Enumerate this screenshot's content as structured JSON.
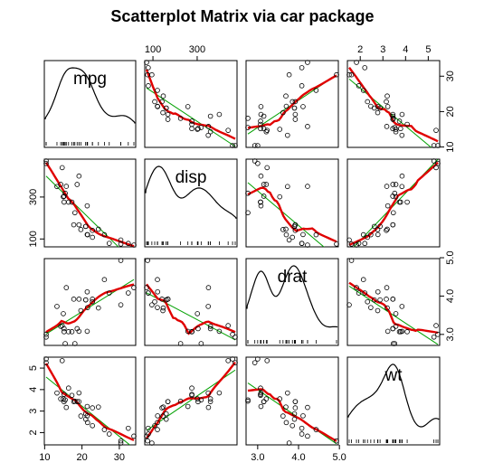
{
  "chart_data": {
    "type": "scatter",
    "title": "Scatterplot Matrix via car package",
    "variables": [
      "mpg",
      "disp",
      "drat",
      "wt"
    ],
    "axis_ticks": {
      "mpg": [
        "10",
        "20",
        "30"
      ],
      "disp": [
        "100",
        "300"
      ],
      "drat": [
        "3.0",
        "4.0",
        "5.0"
      ],
      "wt": [
        "2",
        "3",
        "4",
        "5"
      ]
    },
    "ranges": {
      "mpg": [
        10.4,
        33.9
      ],
      "disp": [
        71.1,
        472
      ],
      "drat": [
        2.76,
        4.93
      ],
      "wt": [
        1.513,
        5.424
      ]
    },
    "observations": {
      "mpg": [
        21.0,
        21.0,
        22.8,
        21.4,
        18.7,
        18.1,
        14.3,
        24.4,
        22.8,
        19.2,
        17.8,
        16.4,
        17.3,
        15.2,
        10.4,
        10.4,
        14.7,
        32.4,
        30.4,
        33.9,
        21.5,
        15.5,
        15.2,
        13.3,
        19.2,
        27.3,
        26.0,
        30.4,
        15.8,
        19.7,
        15.0,
        21.4
      ],
      "disp": [
        160,
        160,
        108,
        258,
        360,
        225,
        360,
        146.7,
        140.8,
        167.6,
        167.6,
        275.8,
        275.8,
        275.8,
        472,
        460,
        440,
        78.7,
        75.7,
        71.1,
        120.1,
        318,
        304,
        350,
        400,
        79,
        120.3,
        95.1,
        351,
        145,
        301,
        121
      ],
      "drat": [
        3.9,
        3.9,
        3.85,
        3.08,
        3.15,
        2.76,
        3.21,
        3.69,
        3.92,
        3.92,
        3.92,
        3.07,
        3.07,
        3.07,
        2.93,
        3.0,
        3.23,
        4.08,
        4.93,
        4.22,
        3.7,
        2.76,
        3.15,
        3.73,
        3.08,
        4.08,
        4.43,
        3.77,
        4.22,
        3.62,
        3.54,
        4.11
      ],
      "wt": [
        2.62,
        2.875,
        2.32,
        3.215,
        3.44,
        3.46,
        3.57,
        3.19,
        3.15,
        3.44,
        3.44,
        4.07,
        3.73,
        3.78,
        5.25,
        5.424,
        5.345,
        2.2,
        1.615,
        1.835,
        2.465,
        3.52,
        3.435,
        3.84,
        3.845,
        1.935,
        2.14,
        1.513,
        3.17,
        2.77,
        3.57,
        2.78
      ]
    },
    "fit_lines": {
      "linear": "#00a000",
      "smooth": "#e00000"
    },
    "diagonal": "density",
    "grid": false
  }
}
